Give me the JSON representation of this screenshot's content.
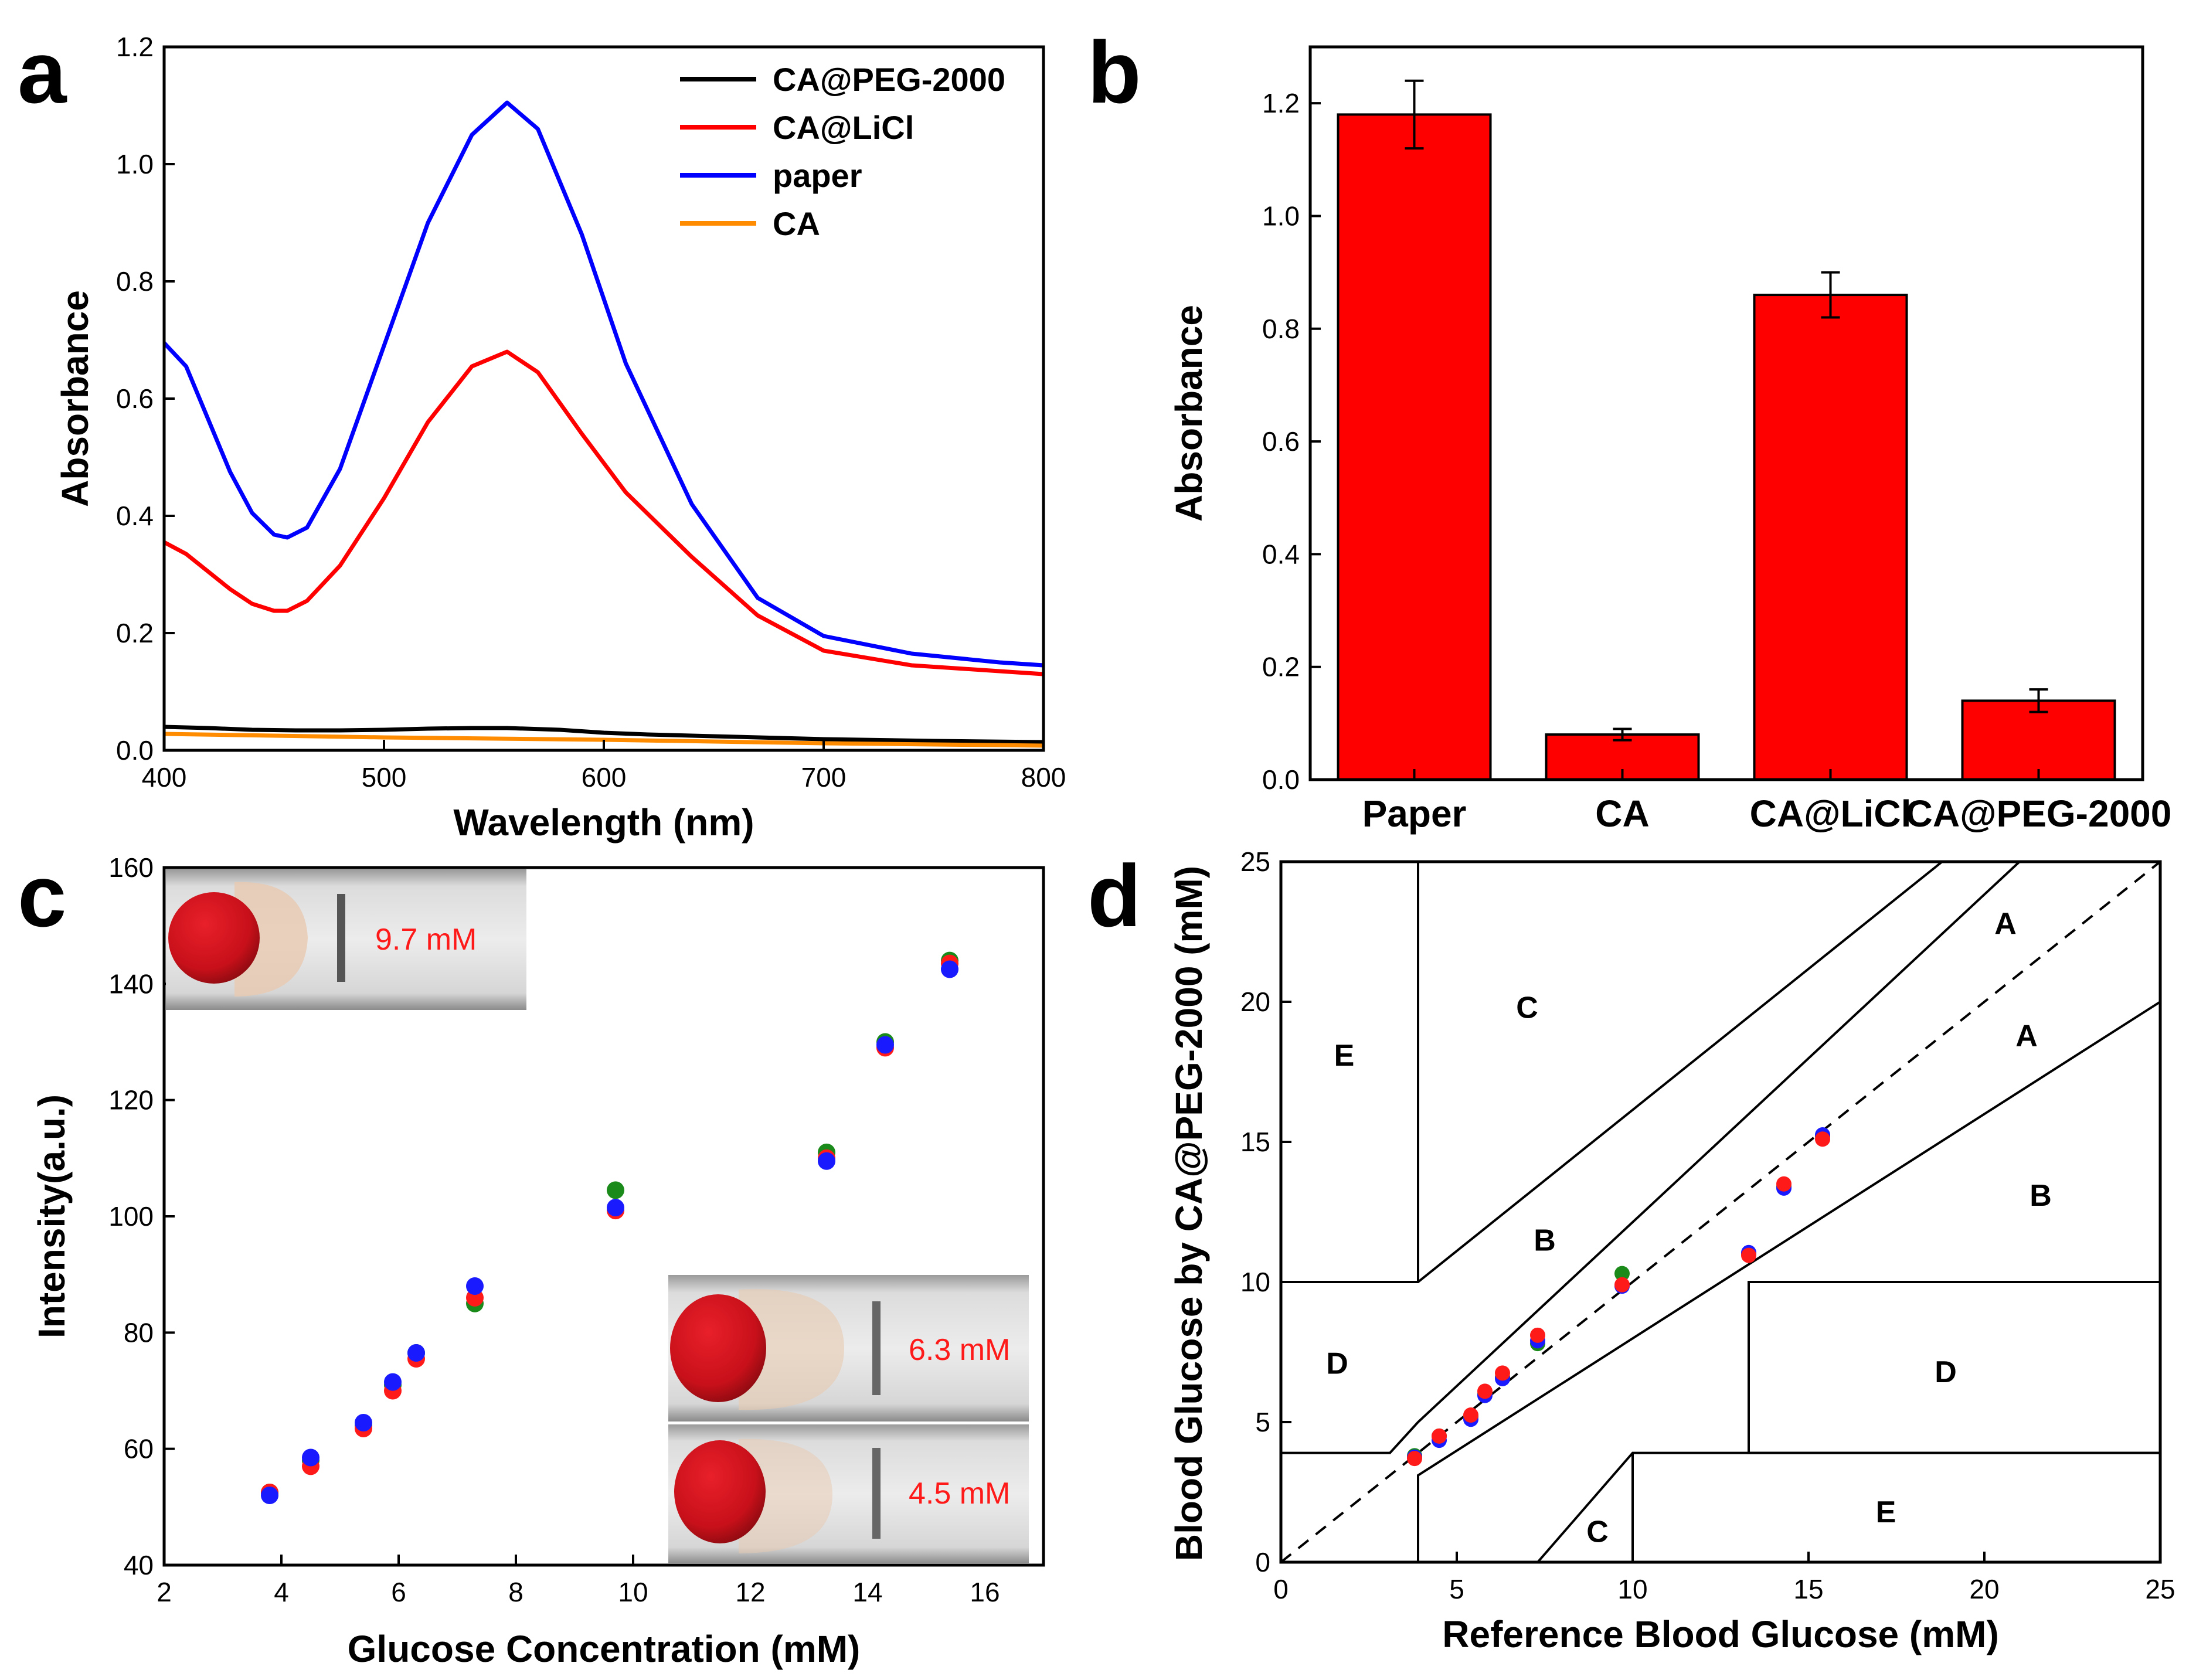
{
  "chart_data": [
    {
      "panel": "a",
      "type": "line",
      "xlabel": "Wavelength (nm)",
      "ylabel": "Absorbance",
      "xlim": [
        400,
        800
      ],
      "ylim": [
        0.0,
        1.2
      ],
      "xticks": [
        400,
        500,
        600,
        700,
        800
      ],
      "yticks": [
        0.0,
        0.2,
        0.4,
        0.6,
        0.8,
        1.0,
        1.2
      ],
      "legend_position": "top-right",
      "series": [
        {
          "name": "CA@PEG-2000",
          "color": "#000000",
          "x": [
            400,
            420,
            440,
            460,
            480,
            500,
            520,
            540,
            556,
            580,
            600,
            620,
            650,
            700,
            750,
            800
          ],
          "y": [
            0.04,
            0.038,
            0.035,
            0.034,
            0.034,
            0.035,
            0.037,
            0.038,
            0.038,
            0.035,
            0.03,
            0.027,
            0.024,
            0.019,
            0.016,
            0.014
          ]
        },
        {
          "name": "CA@LiCl",
          "color": "#ff0000",
          "x": [
            400,
            410,
            420,
            430,
            440,
            450,
            456,
            465,
            480,
            500,
            520,
            540,
            556,
            570,
            590,
            610,
            640,
            670,
            700,
            740,
            780,
            800
          ],
          "y": [
            0.355,
            0.335,
            0.305,
            0.275,
            0.25,
            0.238,
            0.238,
            0.255,
            0.315,
            0.43,
            0.56,
            0.655,
            0.68,
            0.645,
            0.54,
            0.44,
            0.33,
            0.23,
            0.17,
            0.145,
            0.135,
            0.13
          ]
        },
        {
          "name": "paper",
          "color": "#0000ff",
          "x": [
            400,
            410,
            420,
            430,
            440,
            450,
            456,
            465,
            480,
            500,
            520,
            540,
            556,
            570,
            590,
            610,
            640,
            670,
            700,
            740,
            780,
            800
          ],
          "y": [
            0.695,
            0.655,
            0.565,
            0.475,
            0.405,
            0.368,
            0.363,
            0.38,
            0.48,
            0.69,
            0.9,
            1.05,
            1.105,
            1.06,
            0.88,
            0.66,
            0.42,
            0.26,
            0.195,
            0.165,
            0.15,
            0.145
          ]
        },
        {
          "name": "CA",
          "color": "#ff8c00",
          "x": [
            400,
            450,
            500,
            550,
            600,
            650,
            700,
            750,
            800
          ],
          "y": [
            0.028,
            0.025,
            0.022,
            0.02,
            0.018,
            0.015,
            0.012,
            0.01,
            0.008
          ]
        }
      ]
    },
    {
      "panel": "b",
      "type": "bar",
      "xlabel": "",
      "ylabel": "Absorbance",
      "ylim": [
        0.0,
        1.3
      ],
      "yticks": [
        0.0,
        0.2,
        0.4,
        0.6,
        0.8,
        1.0,
        1.2
      ],
      "color": "#ff0000",
      "categories": [
        "Paper",
        "CA",
        "CA@LiCl",
        "CA@PEG-2000"
      ],
      "values": [
        1.18,
        0.08,
        0.86,
        0.14
      ],
      "errors": [
        0.06,
        0.01,
        0.04,
        0.02
      ]
    },
    {
      "panel": "c",
      "type": "scatter",
      "xlabel": "Glucose Concentration (mM)",
      "ylabel": "Intensity(a.u.)",
      "xlim": [
        2,
        17
      ],
      "ylim": [
        40,
        160
      ],
      "xticks": [
        2,
        4,
        6,
        8,
        10,
        12,
        14,
        16
      ],
      "yticks": [
        40,
        60,
        80,
        100,
        120,
        140,
        160
      ],
      "series": [
        {
          "name": "green",
          "color": "#1a8a1a",
          "x": [
            3.8,
            4.5,
            5.4,
            5.9,
            6.3,
            7.3,
            9.7,
            13.3,
            14.3,
            15.4
          ],
          "y": [
            52.5,
            58.0,
            64.0,
            71.0,
            76.5,
            85.0,
            104.5,
            111.0,
            130.0,
            144.0
          ]
        },
        {
          "name": "red",
          "color": "#ff1a1a",
          "x": [
            3.8,
            4.5,
            5.4,
            5.9,
            6.3,
            7.3,
            9.7,
            13.3,
            14.3,
            15.4
          ],
          "y": [
            52.5,
            57.0,
            63.5,
            70.0,
            75.5,
            86.0,
            101.0,
            110.0,
            129.0,
            143.5
          ]
        },
        {
          "name": "blue",
          "color": "#1a1aff",
          "x": [
            3.8,
            4.5,
            5.4,
            5.9,
            6.3,
            7.3,
            9.7,
            13.3,
            14.3,
            15.4
          ],
          "y": [
            52.0,
            58.5,
            64.5,
            71.5,
            76.5,
            88.0,
            101.5,
            109.5,
            129.5,
            142.5
          ]
        }
      ],
      "insets": [
        {
          "label": "9.7 mM",
          "position": "top-left"
        },
        {
          "label": "6.3 mM",
          "position": "bottom-right-upper"
        },
        {
          "label": "4.5 mM",
          "position": "bottom-right-lower"
        }
      ]
    },
    {
      "panel": "d",
      "type": "scatter",
      "subtype": "clarke-error-grid",
      "xlabel": "Reference Blood Glucose (mM)",
      "ylabel": "Blood Glucose by CA@PEG-2000  (mM)",
      "xlim": [
        0,
        25
      ],
      "ylim": [
        0,
        25
      ],
      "xticks": [
        0,
        5,
        10,
        15,
        20,
        25
      ],
      "yticks": [
        0,
        5,
        10,
        15,
        20,
        25
      ],
      "zone_labels": [
        "A",
        "A",
        "B",
        "B",
        "C",
        "C",
        "D",
        "D",
        "E",
        "E"
      ],
      "series": [
        {
          "name": "green",
          "color": "#1a8a1a",
          "x": [
            3.8,
            4.5,
            5.4,
            5.8,
            6.3,
            7.3,
            9.7,
            13.3,
            14.3,
            15.4
          ],
          "y": [
            3.8,
            4.5,
            5.2,
            6.0,
            6.6,
            7.8,
            10.3,
            11.0,
            13.4,
            15.2
          ]
        },
        {
          "name": "blue",
          "color": "#1a1aff",
          "x": [
            3.8,
            4.5,
            5.4,
            5.8,
            6.3,
            7.3,
            9.7,
            13.3,
            14.3,
            15.4
          ],
          "y": [
            3.75,
            4.35,
            5.1,
            5.95,
            6.55,
            7.9,
            9.85,
            11.05,
            13.35,
            15.25
          ]
        },
        {
          "name": "red",
          "color": "#ff1a1a",
          "x": [
            3.8,
            4.5,
            5.4,
            5.8,
            6.3,
            7.3,
            9.7,
            13.3,
            14.3,
            15.4
          ],
          "y": [
            3.7,
            4.5,
            5.25,
            6.1,
            6.75,
            8.1,
            9.9,
            10.95,
            13.5,
            15.1
          ]
        }
      ]
    }
  ],
  "panel_letters": {
    "a": "a",
    "b": "b",
    "c": "c",
    "d": "d"
  }
}
